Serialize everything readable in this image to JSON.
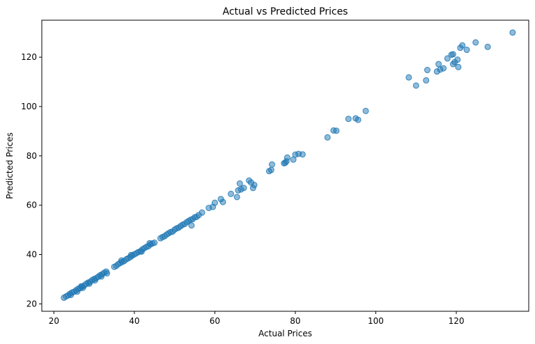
{
  "chart_data": {
    "type": "scatter",
    "title": "Actual vs Predicted Prices",
    "xlabel": "Actual Prices",
    "ylabel": "Predicted Prices",
    "xlim": [
      17,
      138
    ],
    "ylim": [
      17,
      135
    ],
    "xticks": [
      20,
      40,
      60,
      80,
      100,
      120
    ],
    "yticks": [
      20,
      40,
      60,
      80,
      100,
      120
    ],
    "grid": false,
    "color": "#1f77b4",
    "points": [
      [
        22.5,
        22.5
      ],
      [
        23.0,
        23.0
      ],
      [
        23.5,
        23.4
      ],
      [
        24.0,
        24.1
      ],
      [
        24.5,
        24.6
      ],
      [
        25.0,
        24.9
      ],
      [
        25.5,
        25.5
      ],
      [
        26.0,
        26.1
      ],
      [
        26.5,
        26.3
      ],
      [
        27.0,
        27.0
      ],
      [
        27.5,
        27.4
      ],
      [
        28.0,
        28.1
      ],
      [
        28.5,
        28.6
      ],
      [
        29.0,
        28.9
      ],
      [
        29.5,
        29.6
      ],
      [
        30.0,
        30.1
      ],
      [
        30.5,
        30.4
      ],
      [
        31.0,
        31.0
      ],
      [
        31.5,
        31.6
      ],
      [
        32.0,
        32.0
      ],
      [
        32.5,
        32.6
      ],
      [
        33.0,
        33.1
      ],
      [
        24.2,
        23.6
      ],
      [
        25.8,
        25.0
      ],
      [
        27.2,
        26.5
      ],
      [
        28.8,
        28.2
      ],
      [
        30.2,
        29.5
      ],
      [
        31.8,
        31.1
      ],
      [
        33.2,
        32.4
      ],
      [
        26.8,
        27.1
      ],
      [
        35.0,
        35.0
      ],
      [
        35.5,
        35.4
      ],
      [
        36.0,
        36.1
      ],
      [
        36.5,
        36.6
      ],
      [
        37.0,
        37.0
      ],
      [
        37.5,
        37.4
      ],
      [
        38.0,
        38.1
      ],
      [
        38.5,
        38.5
      ],
      [
        39.0,
        39.0
      ],
      [
        39.5,
        39.6
      ],
      [
        40.0,
        40.1
      ],
      [
        40.5,
        40.5
      ],
      [
        41.0,
        41.0
      ],
      [
        41.5,
        41.3
      ],
      [
        42.0,
        42.1
      ],
      [
        42.5,
        42.6
      ],
      [
        43.0,
        43.1
      ],
      [
        43.5,
        43.4
      ],
      [
        44.0,
        44.1
      ],
      [
        44.5,
        44.5
      ],
      [
        36.8,
        37.6
      ],
      [
        39.2,
        39.8
      ],
      [
        41.8,
        41.2
      ],
      [
        43.8,
        44.6
      ],
      [
        45.0,
        44.8
      ],
      [
        46.5,
        46.6
      ],
      [
        47.0,
        47.1
      ],
      [
        47.5,
        47.4
      ],
      [
        48.0,
        48.1
      ],
      [
        48.5,
        48.6
      ],
      [
        49.0,
        49.1
      ],
      [
        49.5,
        49.3
      ],
      [
        50.0,
        50.1
      ],
      [
        50.5,
        50.6
      ],
      [
        51.0,
        50.9
      ],
      [
        51.5,
        51.5
      ],
      [
        52.0,
        52.1
      ],
      [
        52.5,
        52.4
      ],
      [
        53.0,
        53.1
      ],
      [
        53.5,
        53.6
      ],
      [
        54.0,
        54.1
      ],
      [
        54.5,
        54.4
      ],
      [
        55.0,
        55.1
      ],
      [
        55.5,
        55.3
      ],
      [
        54.2,
        51.8
      ],
      [
        56.0,
        56.0
      ],
      [
        56.8,
        57.0
      ],
      [
        58.5,
        58.9
      ],
      [
        59.5,
        59.3
      ],
      [
        60.0,
        61.0
      ],
      [
        61.5,
        62.5
      ],
      [
        62.0,
        61.3
      ],
      [
        64.0,
        64.6
      ],
      [
        65.5,
        63.3
      ],
      [
        65.8,
        66.0
      ],
      [
        66.2,
        68.8
      ],
      [
        66.5,
        66.4
      ],
      [
        67.2,
        67.0
      ],
      [
        68.5,
        70.0
      ],
      [
        69.0,
        69.2
      ],
      [
        69.5,
        67.0
      ],
      [
        69.8,
        68.2
      ],
      [
        73.5,
        73.8
      ],
      [
        74.0,
        74.3
      ],
      [
        74.2,
        76.5
      ],
      [
        77.2,
        77.0
      ],
      [
        77.5,
        77.2
      ],
      [
        77.8,
        77.8
      ],
      [
        78.0,
        79.3
      ],
      [
        79.5,
        78.5
      ],
      [
        80.0,
        80.5
      ],
      [
        80.8,
        80.8
      ],
      [
        81.8,
        80.6
      ],
      [
        88.0,
        87.5
      ],
      [
        89.5,
        90.3
      ],
      [
        90.2,
        90.2
      ],
      [
        93.2,
        95.0
      ],
      [
        95.0,
        95.2
      ],
      [
        95.6,
        94.6
      ],
      [
        97.5,
        98.2
      ],
      [
        108.2,
        111.8
      ],
      [
        110.0,
        108.5
      ],
      [
        112.5,
        110.6
      ],
      [
        112.8,
        114.8
      ],
      [
        115.2,
        114.2
      ],
      [
        115.6,
        117.2
      ],
      [
        116.0,
        115.0
      ],
      [
        116.8,
        115.5
      ],
      [
        117.8,
        119.5
      ],
      [
        118.8,
        121.0
      ],
      [
        119.2,
        121.2
      ],
      [
        119.2,
        117.2
      ],
      [
        119.6,
        118.0
      ],
      [
        120.3,
        119.0
      ],
      [
        120.5,
        116.0
      ],
      [
        121.0,
        123.8
      ],
      [
        121.5,
        124.8
      ],
      [
        122.6,
        123.0
      ],
      [
        124.8,
        126.0
      ],
      [
        127.8,
        124.2
      ],
      [
        134.0,
        130.0
      ]
    ]
  }
}
